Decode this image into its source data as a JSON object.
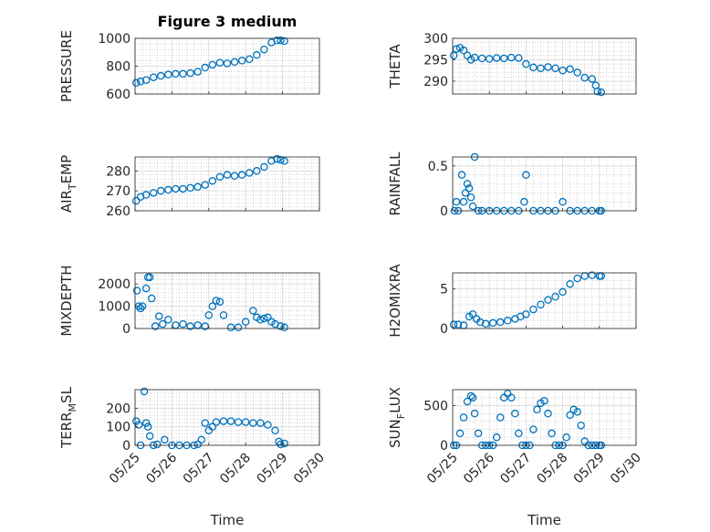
{
  "figure": {
    "title": "Figure 3 medium"
  },
  "colors": {
    "marker": "#0072BD",
    "axis": "#262626",
    "grid": "#d9d9d9",
    "minor_grid": "#b8b8b8"
  },
  "x_axis": {
    "label": "Time",
    "tick_labels": [
      "05/25",
      "05/26",
      "05/27",
      "05/28",
      "05/29",
      "05/30"
    ],
    "range_days": [
      0,
      5
    ],
    "tick_days": [
      0,
      1,
      2,
      3,
      4,
      5
    ]
  },
  "chart_data": [
    {
      "type": "scatter",
      "ylabel": "PRESSURE",
      "ylim": [
        600,
        1000
      ],
      "yticks": [
        600,
        800,
        1000
      ],
      "ytick_labels": [
        "600",
        "800",
        "1000"
      ],
      "grid": true,
      "x": [
        0.03,
        0.15,
        0.3,
        0.5,
        0.7,
        0.9,
        1.1,
        1.3,
        1.5,
        1.7,
        1.9,
        2.1,
        2.3,
        2.5,
        2.7,
        2.9,
        3.1,
        3.3,
        3.5,
        3.7,
        3.85,
        3.95,
        4.05
      ],
      "y": [
        680,
        690,
        700,
        720,
        730,
        740,
        745,
        745,
        750,
        760,
        790,
        810,
        825,
        820,
        830,
        840,
        850,
        880,
        920,
        970,
        985,
        985,
        980
      ]
    },
    {
      "type": "scatter",
      "ylabel": "THETA",
      "ylim": [
        287,
        300
      ],
      "yticks": [
        290,
        295,
        300
      ],
      "ytick_labels": [
        "290",
        "295",
        "300"
      ],
      "grid": true,
      "x": [
        0.03,
        0.1,
        0.2,
        0.3,
        0.4,
        0.5,
        0.6,
        0.8,
        1.0,
        1.2,
        1.4,
        1.6,
        1.8,
        2.0,
        2.2,
        2.4,
        2.6,
        2.8,
        3.0,
        3.2,
        3.4,
        3.6,
        3.8,
        3.9,
        3.95,
        4.05
      ],
      "y": [
        296,
        297.5,
        297.8,
        297.2,
        296,
        295,
        295.5,
        295.3,
        295.2,
        295.4,
        295.3,
        295.5,
        295.4,
        294,
        293.2,
        293,
        293.3,
        293,
        292.5,
        292.8,
        292,
        290.8,
        290.5,
        289,
        287.6,
        287.4
      ]
    },
    {
      "type": "scatter",
      "ylabel": "AIR_TEMP",
      "ylim": [
        260,
        287
      ],
      "yticks": [
        260,
        270,
        280
      ],
      "ytick_labels": [
        "260",
        "270",
        "280"
      ],
      "grid": true,
      "x": [
        0.03,
        0.15,
        0.3,
        0.5,
        0.7,
        0.9,
        1.1,
        1.3,
        1.5,
        1.7,
        1.9,
        2.1,
        2.3,
        2.5,
        2.7,
        2.9,
        3.1,
        3.3,
        3.5,
        3.7,
        3.85,
        3.95,
        4.05
      ],
      "y": [
        265,
        267,
        268,
        269,
        270,
        270.5,
        271,
        271,
        271.5,
        272,
        273,
        275,
        277,
        278,
        277.5,
        278,
        279,
        280,
        282,
        285,
        286,
        285.5,
        285
      ]
    },
    {
      "type": "scatter",
      "ylabel": "RAINFALL",
      "ylim": [
        0,
        0.6
      ],
      "yticks": [
        0,
        0.5
      ],
      "ytick_labels": [
        "0",
        "0.5"
      ],
      "grid": true,
      "x": [
        0.05,
        0.1,
        0.15,
        0.25,
        0.3,
        0.35,
        0.4,
        0.45,
        0.5,
        0.55,
        0.6,
        0.7,
        0.8,
        1.0,
        1.2,
        1.4,
        1.6,
        1.8,
        1.95,
        2.0,
        2.2,
        2.4,
        2.6,
        2.8,
        3.0,
        3.2,
        3.4,
        3.6,
        3.8,
        4.0,
        4.05
      ],
      "y": [
        0,
        0.1,
        0,
        0.4,
        0.1,
        0.2,
        0.3,
        0.25,
        0.15,
        0.05,
        0.6,
        0,
        0,
        0,
        0,
        0,
        0,
        0,
        0.1,
        0.4,
        0,
        0,
        0,
        0,
        0.1,
        0,
        0,
        0,
        0,
        0,
        0
      ]
    },
    {
      "type": "scatter",
      "ylabel": "MIXDEPTH",
      "ylim": [
        0,
        2500
      ],
      "yticks": [
        0,
        1000,
        2000
      ],
      "ytick_labels": [
        "0",
        "1000",
        "2000"
      ],
      "grid": true,
      "x": [
        0.05,
        0.1,
        0.15,
        0.2,
        0.3,
        0.35,
        0.4,
        0.45,
        0.55,
        0.65,
        0.75,
        0.9,
        1.1,
        1.3,
        1.5,
        1.7,
        1.9,
        2.0,
        2.1,
        2.2,
        2.3,
        2.4,
        2.6,
        2.8,
        3.0,
        3.2,
        3.3,
        3.4,
        3.5,
        3.6,
        3.7,
        3.8,
        3.95,
        4.05
      ],
      "y": [
        1700,
        1000,
        900,
        1000,
        1800,
        2300,
        2300,
        1350,
        100,
        550,
        200,
        400,
        150,
        200,
        100,
        150,
        100,
        600,
        1000,
        1250,
        1200,
        600,
        50,
        50,
        300,
        800,
        500,
        400,
        450,
        500,
        300,
        200,
        100,
        50
      ]
    },
    {
      "type": "scatter",
      "ylabel": "H2OMIXRA",
      "ylim": [
        0,
        7
      ],
      "yticks": [
        0,
        5
      ],
      "ytick_labels": [
        "0",
        "5"
      ],
      "grid": true,
      "x": [
        0.03,
        0.15,
        0.3,
        0.45,
        0.55,
        0.65,
        0.75,
        0.9,
        1.1,
        1.3,
        1.5,
        1.7,
        1.85,
        2.0,
        2.2,
        2.4,
        2.6,
        2.8,
        3.0,
        3.2,
        3.4,
        3.6,
        3.8,
        4.0,
        4.05
      ],
      "y": [
        0.5,
        0.5,
        0.4,
        1.5,
        1.8,
        1.2,
        0.8,
        0.6,
        0.7,
        0.8,
        1.0,
        1.2,
        1.5,
        1.8,
        2.4,
        3.0,
        3.6,
        4.0,
        4.6,
        5.6,
        6.3,
        6.6,
        6.7,
        6.6,
        6.6
      ]
    },
    {
      "type": "scatter",
      "ylabel": "TERR_MSL",
      "ylim": [
        0,
        300
      ],
      "yticks": [
        0,
        100,
        200
      ],
      "ytick_labels": [
        "0",
        "100",
        "200"
      ],
      "grid": true,
      "x": [
        0.03,
        0.1,
        0.15,
        0.25,
        0.3,
        0.35,
        0.4,
        0.5,
        0.6,
        0.8,
        1.0,
        1.2,
        1.4,
        1.6,
        1.7,
        1.8,
        1.9,
        2.0,
        2.1,
        2.2,
        2.4,
        2.6,
        2.8,
        3.0,
        3.2,
        3.4,
        3.6,
        3.8,
        3.9,
        3.95,
        4.05
      ],
      "y": [
        130,
        110,
        0,
        290,
        120,
        100,
        50,
        0,
        5,
        30,
        0,
        0,
        0,
        0,
        5,
        30,
        120,
        80,
        100,
        125,
        130,
        130,
        125,
        125,
        120,
        120,
        110,
        80,
        20,
        5,
        10
      ]
    },
    {
      "type": "scatter",
      "ylabel": "SUN_FLUX",
      "ylim": [
        0,
        700
      ],
      "yticks": [
        0,
        500
      ],
      "ytick_labels": [
        "0",
        "500"
      ],
      "grid": true,
      "x": [
        0.03,
        0.1,
        0.2,
        0.3,
        0.4,
        0.5,
        0.55,
        0.6,
        0.7,
        0.8,
        0.9,
        1.0,
        1.1,
        1.2,
        1.3,
        1.4,
        1.5,
        1.6,
        1.7,
        1.8,
        1.9,
        2.0,
        2.1,
        2.2,
        2.3,
        2.4,
        2.5,
        2.6,
        2.7,
        2.8,
        2.9,
        3.0,
        3.1,
        3.2,
        3.3,
        3.4,
        3.5,
        3.6,
        3.7,
        3.8,
        3.9,
        4.0,
        4.05
      ],
      "y": [
        0,
        0,
        150,
        350,
        550,
        620,
        600,
        400,
        150,
        0,
        0,
        0,
        0,
        100,
        350,
        600,
        650,
        600,
        400,
        150,
        0,
        0,
        0,
        200,
        450,
        530,
        560,
        400,
        150,
        0,
        0,
        0,
        100,
        380,
        450,
        420,
        250,
        50,
        0,
        0,
        0,
        0,
        0
      ]
    }
  ]
}
